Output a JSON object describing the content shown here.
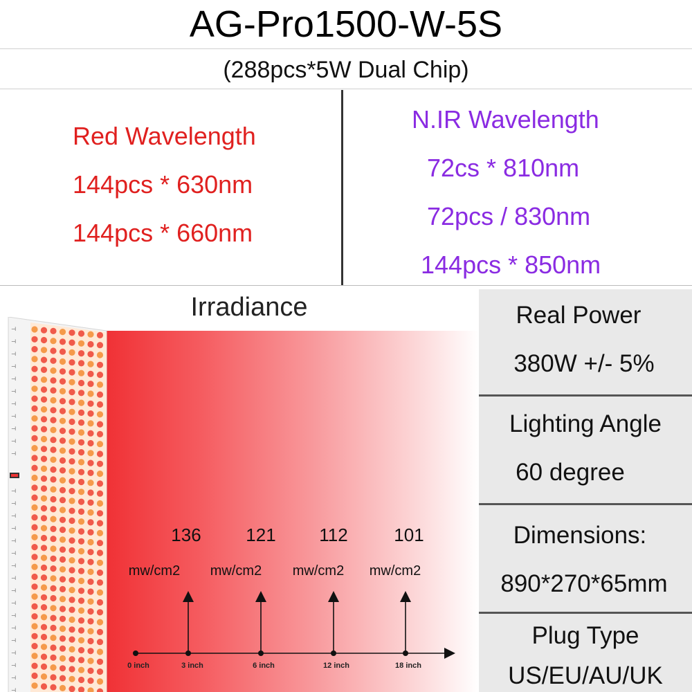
{
  "header": {
    "title": "AG-Pro1500-W-5S",
    "subtitle": "(288pcs*5W Dual Chip)"
  },
  "wavelengths": {
    "red": {
      "heading": "Red Wavelength",
      "lines": [
        "144pcs * 630nm",
        "144pcs * 660nm"
      ],
      "color": "#e0201f"
    },
    "nir": {
      "heading": "N.IR Wavelength",
      "lines": [
        "72cs * 810nm",
        "72pcs / 830nm",
        "144pcs * 850nm"
      ],
      "color": "#8a2be2"
    }
  },
  "irradiance": {
    "title": "Irradiance",
    "unit": "mw/cm2",
    "measurements": [
      {
        "distance": "3 inch",
        "value": "136"
      },
      {
        "distance": "6 inch",
        "value": "121"
      },
      {
        "distance": "12 inch",
        "value": "112"
      },
      {
        "distance": "18 inch",
        "value": "101"
      }
    ],
    "origin_label": "0 inch",
    "beam_color": "#f03034"
  },
  "specs": [
    {
      "label": "Real Power",
      "value": "380W +/- 5%"
    },
    {
      "label": "Lighting Angle",
      "value": "60 degree"
    },
    {
      "label": "Dimensions:",
      "value": "890*270*65mm"
    },
    {
      "label": "Plug Type",
      "value": "US/EU/AU/UK"
    }
  ]
}
